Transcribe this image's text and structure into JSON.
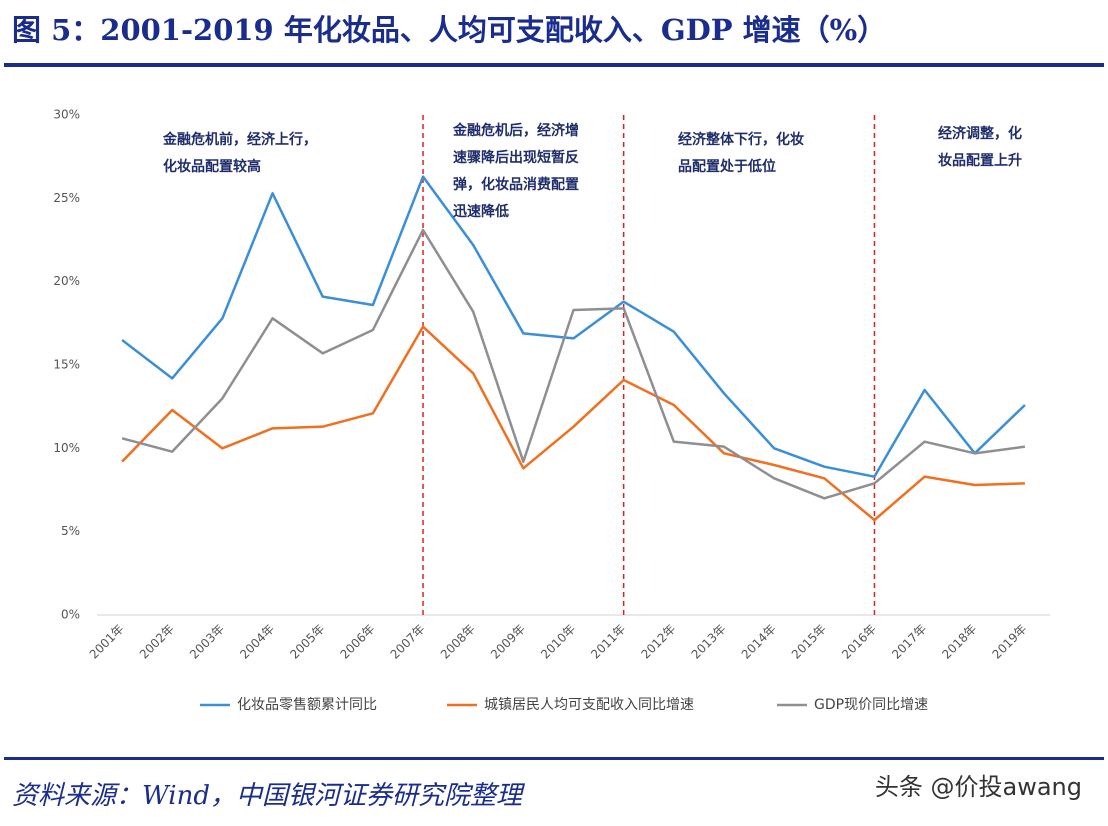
{
  "header": {
    "title": "图 5：2001-2019 年化妆品、人均可支配收入、GDP 增速（%）"
  },
  "chart_data": {
    "type": "line",
    "categories": [
      "2001年",
      "2002年",
      "2003年",
      "2004年",
      "2005年",
      "2006年",
      "2007年",
      "2008年",
      "2009年",
      "2010年",
      "2011年",
      "2012年",
      "2013年",
      "2014年",
      "2015年",
      "2016年",
      "2017年",
      "2018年",
      "2019年"
    ],
    "series": [
      {
        "name": "化妆品零售额累计同比",
        "color": "#3a8fd8",
        "values": [
          16.5,
          14.2,
          17.8,
          25.3,
          19.1,
          18.6,
          26.3,
          22.2,
          16.9,
          16.6,
          18.8,
          17.0,
          13.3,
          10.0,
          8.9,
          8.3,
          13.5,
          9.7,
          12.6
        ]
      },
      {
        "name": "城镇居民人均可支配收入同比增速",
        "color": "#f07020",
        "values": [
          9.2,
          12.3,
          10.0,
          11.2,
          11.3,
          12.1,
          17.3,
          14.5,
          8.8,
          11.3,
          14.1,
          12.6,
          9.7,
          9.0,
          8.2,
          5.7,
          8.3,
          7.8,
          7.9
        ]
      },
      {
        "name": "GDP现价同比增速",
        "color": "#8f8f93",
        "values": [
          10.6,
          9.8,
          13.0,
          17.8,
          15.7,
          17.1,
          23.1,
          18.2,
          9.2,
          18.3,
          18.4,
          10.4,
          10.1,
          8.2,
          7.0,
          7.9,
          10.4,
          9.7,
          10.1
        ]
      }
    ],
    "ylim": [
      0,
      30
    ],
    "yticks": [
      {
        "value": 0,
        "label": "0%"
      },
      {
        "value": 5,
        "label": "5%"
      },
      {
        "value": 10,
        "label": "10%"
      },
      {
        "value": 15,
        "label": "15%"
      },
      {
        "value": 20,
        "label": "20%"
      },
      {
        "value": 25,
        "label": "25%"
      },
      {
        "value": 30,
        "label": "30%"
      }
    ],
    "reference_lines": [
      {
        "category": "2007年",
        "color": "#e02020"
      },
      {
        "category": "2011年",
        "color": "#e02020"
      },
      {
        "category": "2016年",
        "color": "#e02020"
      }
    ],
    "annotations": [
      {
        "lines": [
          "金融危机前，经济上行，",
          "化妆品配置较高"
        ]
      },
      {
        "lines": [
          "金融危机后，经济增",
          "速骤降后出现短暂反",
          "弹，化妆品消费配置",
          "迅速降低"
        ]
      },
      {
        "lines": [
          "经济整体下行，化妆",
          "品配置处于低位"
        ]
      },
      {
        "lines": [
          "经济调整，化",
          "妆品配置上升"
        ]
      }
    ],
    "legend": "bottom"
  },
  "footer": {
    "source": "资料来源：Wind，中国银河证券研究院整理",
    "watermark": "头条 @价投awang"
  }
}
